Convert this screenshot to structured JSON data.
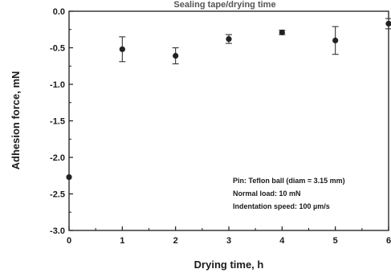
{
  "chart_data": {
    "type": "scatter",
    "title": "Sealing tape/drying time",
    "xlabel": "Drying time, h",
    "ylabel": "Adhesion force, mN",
    "xlim": [
      0,
      6
    ],
    "ylim": [
      -3.0,
      0.0
    ],
    "x_ticks": [
      "0",
      "1",
      "2",
      "3",
      "4",
      "5",
      "6"
    ],
    "y_ticks": [
      "-3.0",
      "-2.5",
      "-2.0",
      "-1.5",
      "-1.0",
      "-0.5",
      "0.0"
    ],
    "grid": false,
    "series": [
      {
        "x": [
          0,
          1,
          2,
          3,
          4,
          5,
          6
        ],
        "y": [
          -2.27,
          -0.52,
          -0.61,
          -0.38,
          -0.29,
          -0.4,
          -0.17
        ],
        "err": [
          0.0,
          0.17,
          0.11,
          0.06,
          0.03,
          0.19,
          0.07
        ]
      }
    ],
    "annotation": [
      "Pin: Teflon ball (diam = 3.15 mm)",
      "Normal load: 10 mN",
      "Indentation speed: 100 µm/s"
    ]
  }
}
